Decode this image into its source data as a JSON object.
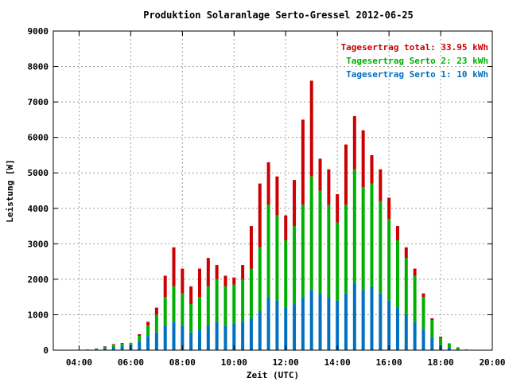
{
  "chart_data": {
    "type": "bar",
    "title": "Produktion Solaranlage Serto-Gressel 2012-06-25",
    "xlabel": "Zeit (UTC)",
    "ylabel": "Leistung [W]",
    "xlim": [
      "03:00",
      "20:00"
    ],
    "ylim": [
      0,
      9000
    ],
    "x_ticks": [
      "04:00",
      "06:00",
      "08:00",
      "10:00",
      "12:00",
      "14:00",
      "16:00",
      "18:00",
      "20:00"
    ],
    "y_ticks": [
      0,
      1000,
      2000,
      3000,
      4000,
      5000,
      6000,
      7000,
      8000,
      9000
    ],
    "grid": true,
    "legend_position": "top-right",
    "stacked": true,
    "legend": [
      {
        "text": "Tagesertrag total: 33.95 kWh",
        "color": "#cc0000"
      },
      {
        "text": "Tagesertrag Serto 2: 23 kWh",
        "color": "#00b000"
      },
      {
        "text": "Tagesertrag Serto 1: 10 kWh",
        "color": "#0070c0"
      }
    ],
    "series": [
      {
        "color": "#0070c0",
        "x": [
          "04:20",
          "04:40",
          "05:00",
          "05:20",
          "05:40",
          "06:00",
          "06:20",
          "06:40",
          "07:00",
          "07:20",
          "07:40",
          "08:00",
          "08:20",
          "08:40",
          "09:00",
          "09:20",
          "09:40",
          "10:00",
          "10:20",
          "10:40",
          "11:00",
          "11:20",
          "11:40",
          "12:00",
          "12:20",
          "12:40",
          "13:00",
          "13:20",
          "13:40",
          "14:00",
          "14:20",
          "14:40",
          "15:00",
          "15:20",
          "15:40",
          "16:00",
          "16:20",
          "16:40",
          "17:00",
          "17:20",
          "17:40",
          "18:00",
          "18:20",
          "18:40",
          "19:00"
        ],
        "values": [
          10,
          30,
          60,
          90,
          120,
          150,
          250,
          400,
          500,
          700,
          800,
          700,
          500,
          600,
          700,
          800,
          700,
          750,
          800,
          900,
          1100,
          1500,
          1400,
          1200,
          1300,
          1500,
          1700,
          1600,
          1500,
          1400,
          1600,
          1900,
          1700,
          1800,
          1600,
          1400,
          1200,
          1000,
          800,
          600,
          350,
          150,
          80,
          30,
          10
        ]
      },
      {
        "color": "#00b000",
        "x": [
          "04:20",
          "04:40",
          "05:00",
          "05:20",
          "05:40",
          "06:00",
          "06:20",
          "06:40",
          "07:00",
          "07:20",
          "07:40",
          "08:00",
          "08:20",
          "08:40",
          "09:00",
          "09:20",
          "09:40",
          "10:00",
          "10:20",
          "10:40",
          "11:00",
          "11:20",
          "11:40",
          "12:00",
          "12:20",
          "12:40",
          "13:00",
          "13:20",
          "13:40",
          "14:00",
          "14:20",
          "14:40",
          "15:00",
          "15:20",
          "15:40",
          "16:00",
          "16:20",
          "16:40",
          "17:00",
          "17:20",
          "17:40",
          "18:00",
          "18:20",
          "18:40",
          "19:00"
        ],
        "values": [
          10,
          20,
          40,
          60,
          60,
          50,
          150,
          300,
          500,
          800,
          1000,
          900,
          800,
          900,
          1100,
          1200,
          1100,
          1100,
          1200,
          1400,
          1800,
          2600,
          2400,
          1900,
          2200,
          2600,
          3200,
          2900,
          2600,
          2200,
          2500,
          3200,
          2900,
          2900,
          2600,
          2300,
          1900,
          1600,
          1300,
          900,
          500,
          200,
          100,
          40,
          10
        ]
      },
      {
        "color": "#cc0000",
        "x": [
          "04:20",
          "04:40",
          "05:00",
          "05:20",
          "05:40",
          "06:00",
          "06:20",
          "06:40",
          "07:00",
          "07:20",
          "07:40",
          "08:00",
          "08:20",
          "08:40",
          "09:00",
          "09:20",
          "09:40",
          "10:00",
          "10:20",
          "10:40",
          "11:00",
          "11:20",
          "11:40",
          "12:00",
          "12:20",
          "12:40",
          "13:00",
          "13:20",
          "13:40",
          "14:00",
          "14:20",
          "14:40",
          "15:00",
          "15:20",
          "15:40",
          "16:00",
          "16:20",
          "16:40",
          "17:00",
          "17:20",
          "17:40",
          "18:00",
          "18:20",
          "18:40",
          "19:00"
        ],
        "values": [
          0,
          0,
          10,
          20,
          20,
          0,
          50,
          100,
          200,
          600,
          1100,
          700,
          500,
          800,
          800,
          400,
          300,
          200,
          400,
          1200,
          1800,
          1200,
          1100,
          700,
          1300,
          2400,
          2700,
          900,
          1000,
          800,
          1700,
          1500,
          1600,
          800,
          900,
          600,
          400,
          300,
          200,
          100,
          50,
          30,
          10,
          10,
          0
        ]
      }
    ]
  }
}
